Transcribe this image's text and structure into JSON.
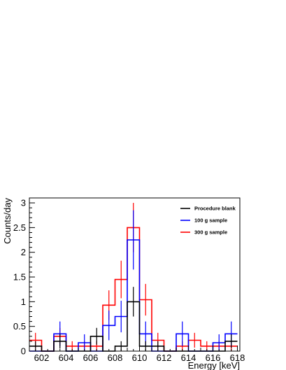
{
  "chart_data": {
    "type": "histogram",
    "xlabel": "Energy [keV]",
    "ylabel": "Counts/day",
    "xlim": [
      601,
      618.2
    ],
    "ylim": [
      0,
      3.1
    ],
    "x_ticks": [
      602,
      604,
      606,
      608,
      610,
      612,
      614,
      616,
      618
    ],
    "x_tick_labels": [
      "602",
      "604",
      "606",
      "608",
      "610",
      "612",
      "614",
      "616",
      "618"
    ],
    "y_ticks": [
      0,
      0.5,
      1,
      1.5,
      2,
      2.5,
      3
    ],
    "y_tick_labels": [
      "0",
      "0.5",
      "1",
      "1.5",
      "2",
      "2.5",
      "3"
    ],
    "legend_position": "top-right",
    "bin_edges": [
      601,
      602,
      603,
      604,
      605,
      606,
      607,
      608,
      609,
      610,
      611,
      612,
      613,
      614,
      615,
      616,
      617,
      618
    ],
    "series": [
      {
        "name": "Procedure blank",
        "color": "#000000",
        "values": [
          0.1,
          0,
          0.2,
          0,
          0,
          0.3,
          0,
          0.1,
          1.0,
          0.1,
          0.1,
          0,
          0,
          0,
          0,
          0,
          0.2
        ],
        "errors": [
          0.1,
          0,
          0.15,
          0,
          0,
          0.17,
          0,
          0.1,
          0.3,
          0.1,
          0.1,
          0,
          0,
          0,
          0,
          0,
          0.14
        ]
      },
      {
        "name": "100 g sample",
        "color": "#0000ff",
        "values": [
          0,
          0,
          0.35,
          0,
          0.17,
          0,
          0.52,
          0.7,
          2.25,
          0.35,
          0,
          0,
          0.35,
          0,
          0,
          0.17,
          0.35
        ],
        "errors": [
          0,
          0,
          0.25,
          0,
          0.17,
          0,
          0.3,
          0.32,
          0.6,
          0.25,
          0,
          0,
          0.25,
          0,
          0,
          0.17,
          0.25
        ]
      },
      {
        "name": "300 g sample",
        "color": "#ff0000",
        "values": [
          0.22,
          0,
          0.3,
          0.1,
          0.1,
          0.1,
          0.93,
          1.45,
          2.5,
          1.04,
          0.22,
          0,
          0.1,
          0.22,
          0.1,
          0.1,
          0.1
        ],
        "errors": [
          0.15,
          0,
          0.17,
          0.1,
          0.1,
          0.1,
          0.3,
          0.38,
          0.5,
          0.32,
          0.15,
          0,
          0.1,
          0.15,
          0.1,
          0.1,
          0.1
        ]
      }
    ]
  }
}
